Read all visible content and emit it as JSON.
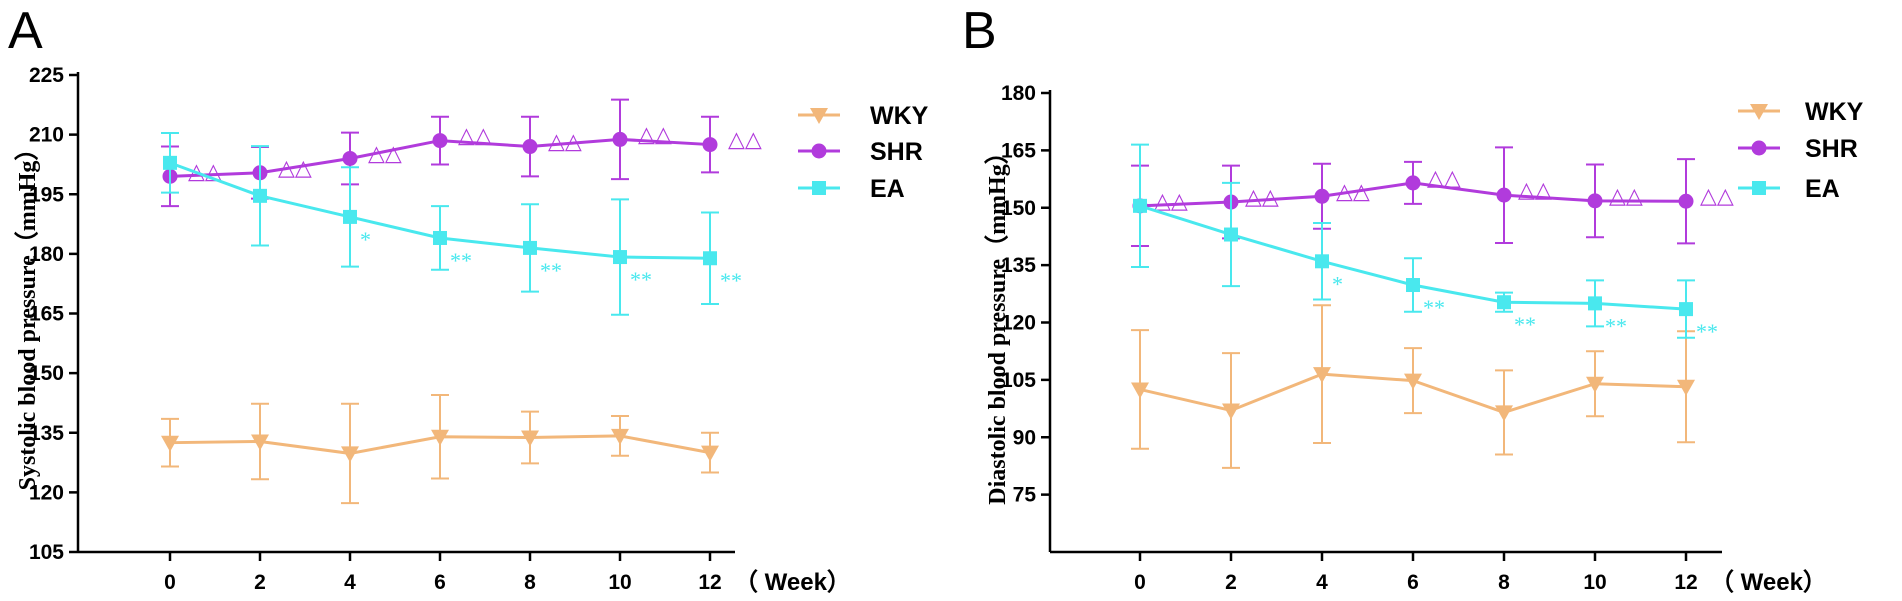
{
  "colors": {
    "WKY": "#F2B77A",
    "SHR": "#B13BDC",
    "EA": "#49E8EE"
  },
  "chart_data": [
    {
      "panel": "A",
      "type": "line",
      "ylabel": "Systolic blood pressure（mmHg）",
      "xlabel": "（ Week）",
      "x": [
        0,
        2,
        4,
        6,
        8,
        10,
        12
      ],
      "ylim": [
        105,
        225
      ],
      "yticks": [
        105,
        120,
        135,
        150,
        165,
        180,
        195,
        210,
        225
      ],
      "series": [
        {
          "name": "WKY",
          "marker": "triangle-down",
          "values": [
            132.5,
            132.8,
            129.8,
            134.0,
            133.8,
            134.2,
            130.0
          ],
          "err": [
            6,
            9.5,
            12.5,
            10.5,
            6.5,
            5,
            5
          ]
        },
        {
          "name": "SHR",
          "marker": "circle",
          "values": [
            199.5,
            200.4,
            204.0,
            208.5,
            207.0,
            208.8,
            207.5
          ],
          "err": [
            7.5,
            6.5,
            6.5,
            6,
            7.5,
            10,
            7
          ],
          "sig": [
            "△△",
            "△△",
            "△△",
            "△△",
            "△△",
            "△△",
            "△△"
          ]
        },
        {
          "name": "EA",
          "marker": "square",
          "values": [
            202.9,
            194.6,
            189.3,
            184.0,
            181.5,
            179.2,
            178.9
          ],
          "err": [
            7.5,
            12.5,
            12.5,
            8,
            11,
            14.5,
            11.5
          ],
          "sig": [
            "",
            "",
            "*",
            "**",
            "**",
            "**",
            "**"
          ]
        }
      ]
    },
    {
      "panel": "B",
      "type": "line",
      "ylabel": "Diastolic blood pressure（mmHg）",
      "xlabel": "（ Week）",
      "x": [
        0,
        2,
        4,
        6,
        8,
        10,
        12
      ],
      "ylim": [
        60,
        180
      ],
      "yticks": [
        75,
        90,
        105,
        120,
        135,
        150,
        165,
        180
      ],
      "series": [
        {
          "name": "WKY",
          "marker": "triangle-down",
          "values": [
            102.5,
            97.0,
            106.5,
            104.8,
            96.5,
            104.0,
            103.2
          ],
          "err": [
            15.5,
            15,
            18,
            8.5,
            11,
            8.5,
            14.5
          ]
        },
        {
          "name": "SHR",
          "marker": "circle",
          "values": [
            150.5,
            151.5,
            153.0,
            156.5,
            153.3,
            151.8,
            151.7
          ],
          "err": [
            10.5,
            9.5,
            8.5,
            5.5,
            12.5,
            9.5,
            11
          ],
          "sig": [
            "△△",
            "△△",
            "△△",
            "△△",
            "△△",
            "△△",
            "△△"
          ]
        },
        {
          "name": "EA",
          "marker": "square",
          "values": [
            150.5,
            143.0,
            136.0,
            129.8,
            125.3,
            125.0,
            123.5
          ],
          "err": [
            16,
            13.5,
            10,
            7,
            2.5,
            6,
            7.5
          ],
          "sig": [
            "",
            "",
            "*",
            "**",
            "**",
            "**",
            "**"
          ]
        }
      ]
    }
  ]
}
